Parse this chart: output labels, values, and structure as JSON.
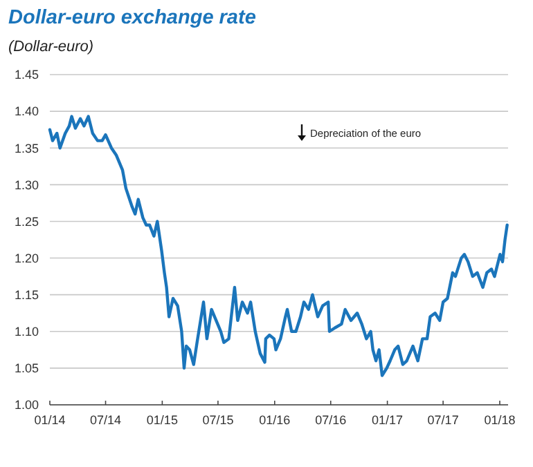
{
  "chart_data": {
    "type": "line",
    "title": "Dollar-euro exchange rate",
    "subtitle": "(Dollar-euro)",
    "annotations": [
      "Depreciation of the euro"
    ],
    "x": [
      "2014-01-01",
      "2014-01-10",
      "2014-01-24",
      "2014-02-03",
      "2014-02-20",
      "2014-03-05",
      "2014-03-13",
      "2014-03-25",
      "2014-04-10",
      "2014-04-22",
      "2014-05-06",
      "2014-05-20",
      "2014-06-05",
      "2014-06-20",
      "2014-07-01",
      "2014-07-20",
      "2014-08-05",
      "2014-08-25",
      "2014-09-05",
      "2014-09-25",
      "2014-10-05",
      "2014-10-15",
      "2014-10-30",
      "2014-11-10",
      "2014-11-21",
      "2014-12-05",
      "2014-12-16",
      "2014-12-30",
      "2015-01-08",
      "2015-01-15",
      "2015-01-23",
      "2015-02-05",
      "2015-02-20",
      "2015-03-05",
      "2015-03-13",
      "2015-03-20",
      "2015-03-31",
      "2015-04-13",
      "2015-04-24",
      "2015-05-15",
      "2015-05-26",
      "2015-06-10",
      "2015-06-25",
      "2015-07-10",
      "2015-07-20",
      "2015-08-05",
      "2015-08-24",
      "2015-09-03",
      "2015-09-18",
      "2015-10-05",
      "2015-10-15",
      "2015-10-30",
      "2015-11-15",
      "2015-11-30",
      "2015-12-03",
      "2015-12-15",
      "2015-12-30",
      "2016-01-05",
      "2016-01-20",
      "2016-02-05",
      "2016-02-11",
      "2016-02-25",
      "2016-03-10",
      "2016-03-25",
      "2016-04-05",
      "2016-04-20",
      "2016-05-03",
      "2016-05-20",
      "2016-06-05",
      "2016-06-23",
      "2016-06-27",
      "2016-07-15",
      "2016-08-05",
      "2016-08-17",
      "2016-09-05",
      "2016-09-25",
      "2016-10-10",
      "2016-10-25",
      "2016-11-08",
      "2016-11-15",
      "2016-11-25",
      "2016-12-05",
      "2016-12-15",
      "2016-12-30",
      "2017-01-10",
      "2017-01-25",
      "2017-02-05",
      "2017-02-20",
      "2017-03-05",
      "2017-03-25",
      "2017-04-10",
      "2017-04-25",
      "2017-05-10",
      "2017-05-20",
      "2017-06-05",
      "2017-06-20",
      "2017-07-01",
      "2017-07-15",
      "2017-08-01",
      "2017-08-10",
      "2017-08-29",
      "2017-09-08",
      "2017-09-20",
      "2017-10-05",
      "2017-10-20",
      "2017-11-07",
      "2017-11-20",
      "2017-12-05",
      "2017-12-15",
      "2018-01-02",
      "2018-01-10",
      "2018-01-18",
      "2018-01-25"
    ],
    "series": [
      {
        "color": "#1b75bb",
        "values": [
          1.375,
          1.36,
          1.37,
          1.35,
          1.37,
          1.38,
          1.393,
          1.377,
          1.39,
          1.38,
          1.393,
          1.37,
          1.36,
          1.36,
          1.368,
          1.35,
          1.34,
          1.32,
          1.295,
          1.27,
          1.26,
          1.28,
          1.255,
          1.245,
          1.245,
          1.23,
          1.25,
          1.21,
          1.18,
          1.16,
          1.12,
          1.145,
          1.135,
          1.1,
          1.05,
          1.08,
          1.075,
          1.055,
          1.085,
          1.14,
          1.09,
          1.13,
          1.115,
          1.1,
          1.085,
          1.09,
          1.16,
          1.115,
          1.14,
          1.125,
          1.14,
          1.1,
          1.07,
          1.058,
          1.09,
          1.095,
          1.09,
          1.075,
          1.09,
          1.12,
          1.13,
          1.1,
          1.1,
          1.12,
          1.14,
          1.13,
          1.15,
          1.12,
          1.135,
          1.14,
          1.1,
          1.105,
          1.11,
          1.13,
          1.115,
          1.125,
          1.11,
          1.09,
          1.1,
          1.075,
          1.06,
          1.075,
          1.04,
          1.05,
          1.06,
          1.075,
          1.08,
          1.055,
          1.06,
          1.08,
          1.06,
          1.09,
          1.09,
          1.12,
          1.125,
          1.115,
          1.14,
          1.145,
          1.18,
          1.175,
          1.2,
          1.205,
          1.195,
          1.175,
          1.18,
          1.16,
          1.18,
          1.185,
          1.175,
          1.205,
          1.195,
          1.225,
          1.245
        ]
      }
    ],
    "xlim": [
      "2014-01-01",
      "2018-01-28"
    ],
    "xticks": [
      {
        "value": "2014-01-01",
        "label": "01/14"
      },
      {
        "value": "2014-07-01",
        "label": "07/14"
      },
      {
        "value": "2015-01-01",
        "label": "01/15"
      },
      {
        "value": "2015-07-01",
        "label": "07/15"
      },
      {
        "value": "2016-01-01",
        "label": "01/16"
      },
      {
        "value": "2016-07-01",
        "label": "07/16"
      },
      {
        "value": "2017-01-01",
        "label": "01/17"
      },
      {
        "value": "2017-07-01",
        "label": "07/17"
      },
      {
        "value": "2018-01-01",
        "label": "01/18"
      }
    ],
    "ylim": [
      1.0,
      1.45
    ],
    "yticks": [
      {
        "value": 1.0,
        "label": "1.00"
      },
      {
        "value": 1.05,
        "label": "1.05"
      },
      {
        "value": 1.1,
        "label": "1.10"
      },
      {
        "value": 1.15,
        "label": "1.15"
      },
      {
        "value": 1.2,
        "label": "1.20"
      },
      {
        "value": 1.25,
        "label": "1.25"
      },
      {
        "value": 1.3,
        "label": "1.30"
      },
      {
        "value": 1.35,
        "label": "1.35"
      },
      {
        "value": 1.4,
        "label": "1.40"
      },
      {
        "value": 1.45,
        "label": "1.45"
      }
    ],
    "grid": "y",
    "marker": "none",
    "line_style": "solid"
  }
}
